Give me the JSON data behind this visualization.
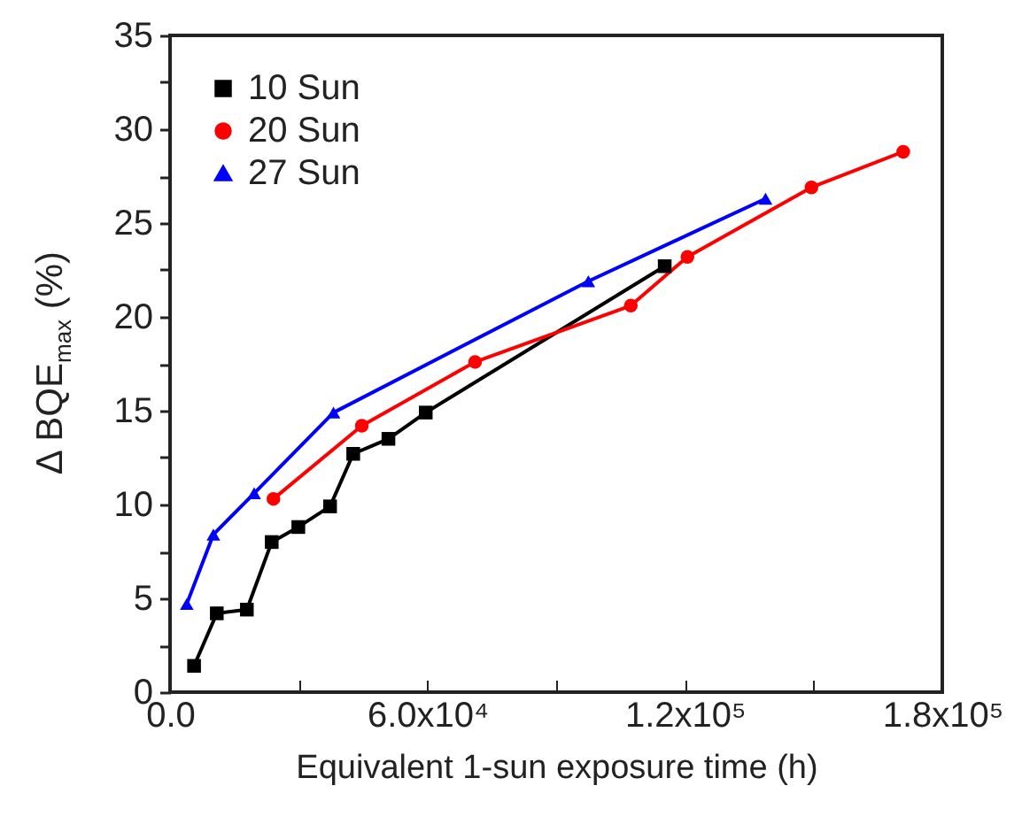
{
  "chart_data": {
    "type": "line",
    "xlabel": "Equivalent 1-sun exposure time (h)",
    "ylabel": "Δ BQE$_{max}$ (%)",
    "xlim": [
      0,
      180000
    ],
    "xticks": [
      {
        "value": 0,
        "label": "0.0"
      },
      {
        "value": 30000,
        "label": null
      },
      {
        "value": 60000,
        "label": "6.0x10⁴"
      },
      {
        "value": 90000,
        "label": null
      },
      {
        "value": 120000,
        "label": "1.2x10⁵"
      },
      {
        "value": 150000,
        "label": null
      },
      {
        "value": 180000,
        "label": "1.8x10⁵"
      }
    ],
    "ylim": [
      0,
      35
    ],
    "yticks": [
      0,
      {
        "value": 2.5,
        "label": null
      },
      5,
      {
        "value": 7.5,
        "label": null
      },
      10,
      {
        "value": 12.5,
        "label": null
      },
      15,
      {
        "value": 17.5,
        "label": null
      },
      20,
      {
        "value": 22.5,
        "label": null
      },
      25,
      {
        "value": 27.5,
        "label": null
      },
      30,
      {
        "value": 32.5,
        "label": null
      },
      35
    ],
    "grid": false,
    "legend": "top left",
    "line_style": "solid",
    "series": [
      {
        "name": "10 Sun",
        "color": "#000000",
        "marker": "square",
        "x": [
          5600,
          10900,
          17900,
          23700,
          29900,
          37300,
          42700,
          50900,
          59600,
          115300
        ],
        "values": [
          1.4,
          4.2,
          4.4,
          8.0,
          8.8,
          9.9,
          12.7,
          13.5,
          14.9,
          22.7
        ]
      },
      {
        "name": "20 Sun",
        "color": "#ff0000",
        "marker": "circle",
        "x": [
          24100,
          44700,
          71100,
          107400,
          120600,
          149500,
          170900
        ],
        "values": [
          10.3,
          14.2,
          17.6,
          20.6,
          23.2,
          26.9,
          28.8
        ]
      },
      {
        "name": "27 Sun",
        "color": "#0000ff",
        "marker": "triangle",
        "x": [
          3900,
          10100,
          19600,
          38100,
          97500,
          138800
        ],
        "values": [
          4.7,
          8.4,
          10.6,
          14.9,
          21.9,
          26.3
        ]
      }
    ]
  }
}
